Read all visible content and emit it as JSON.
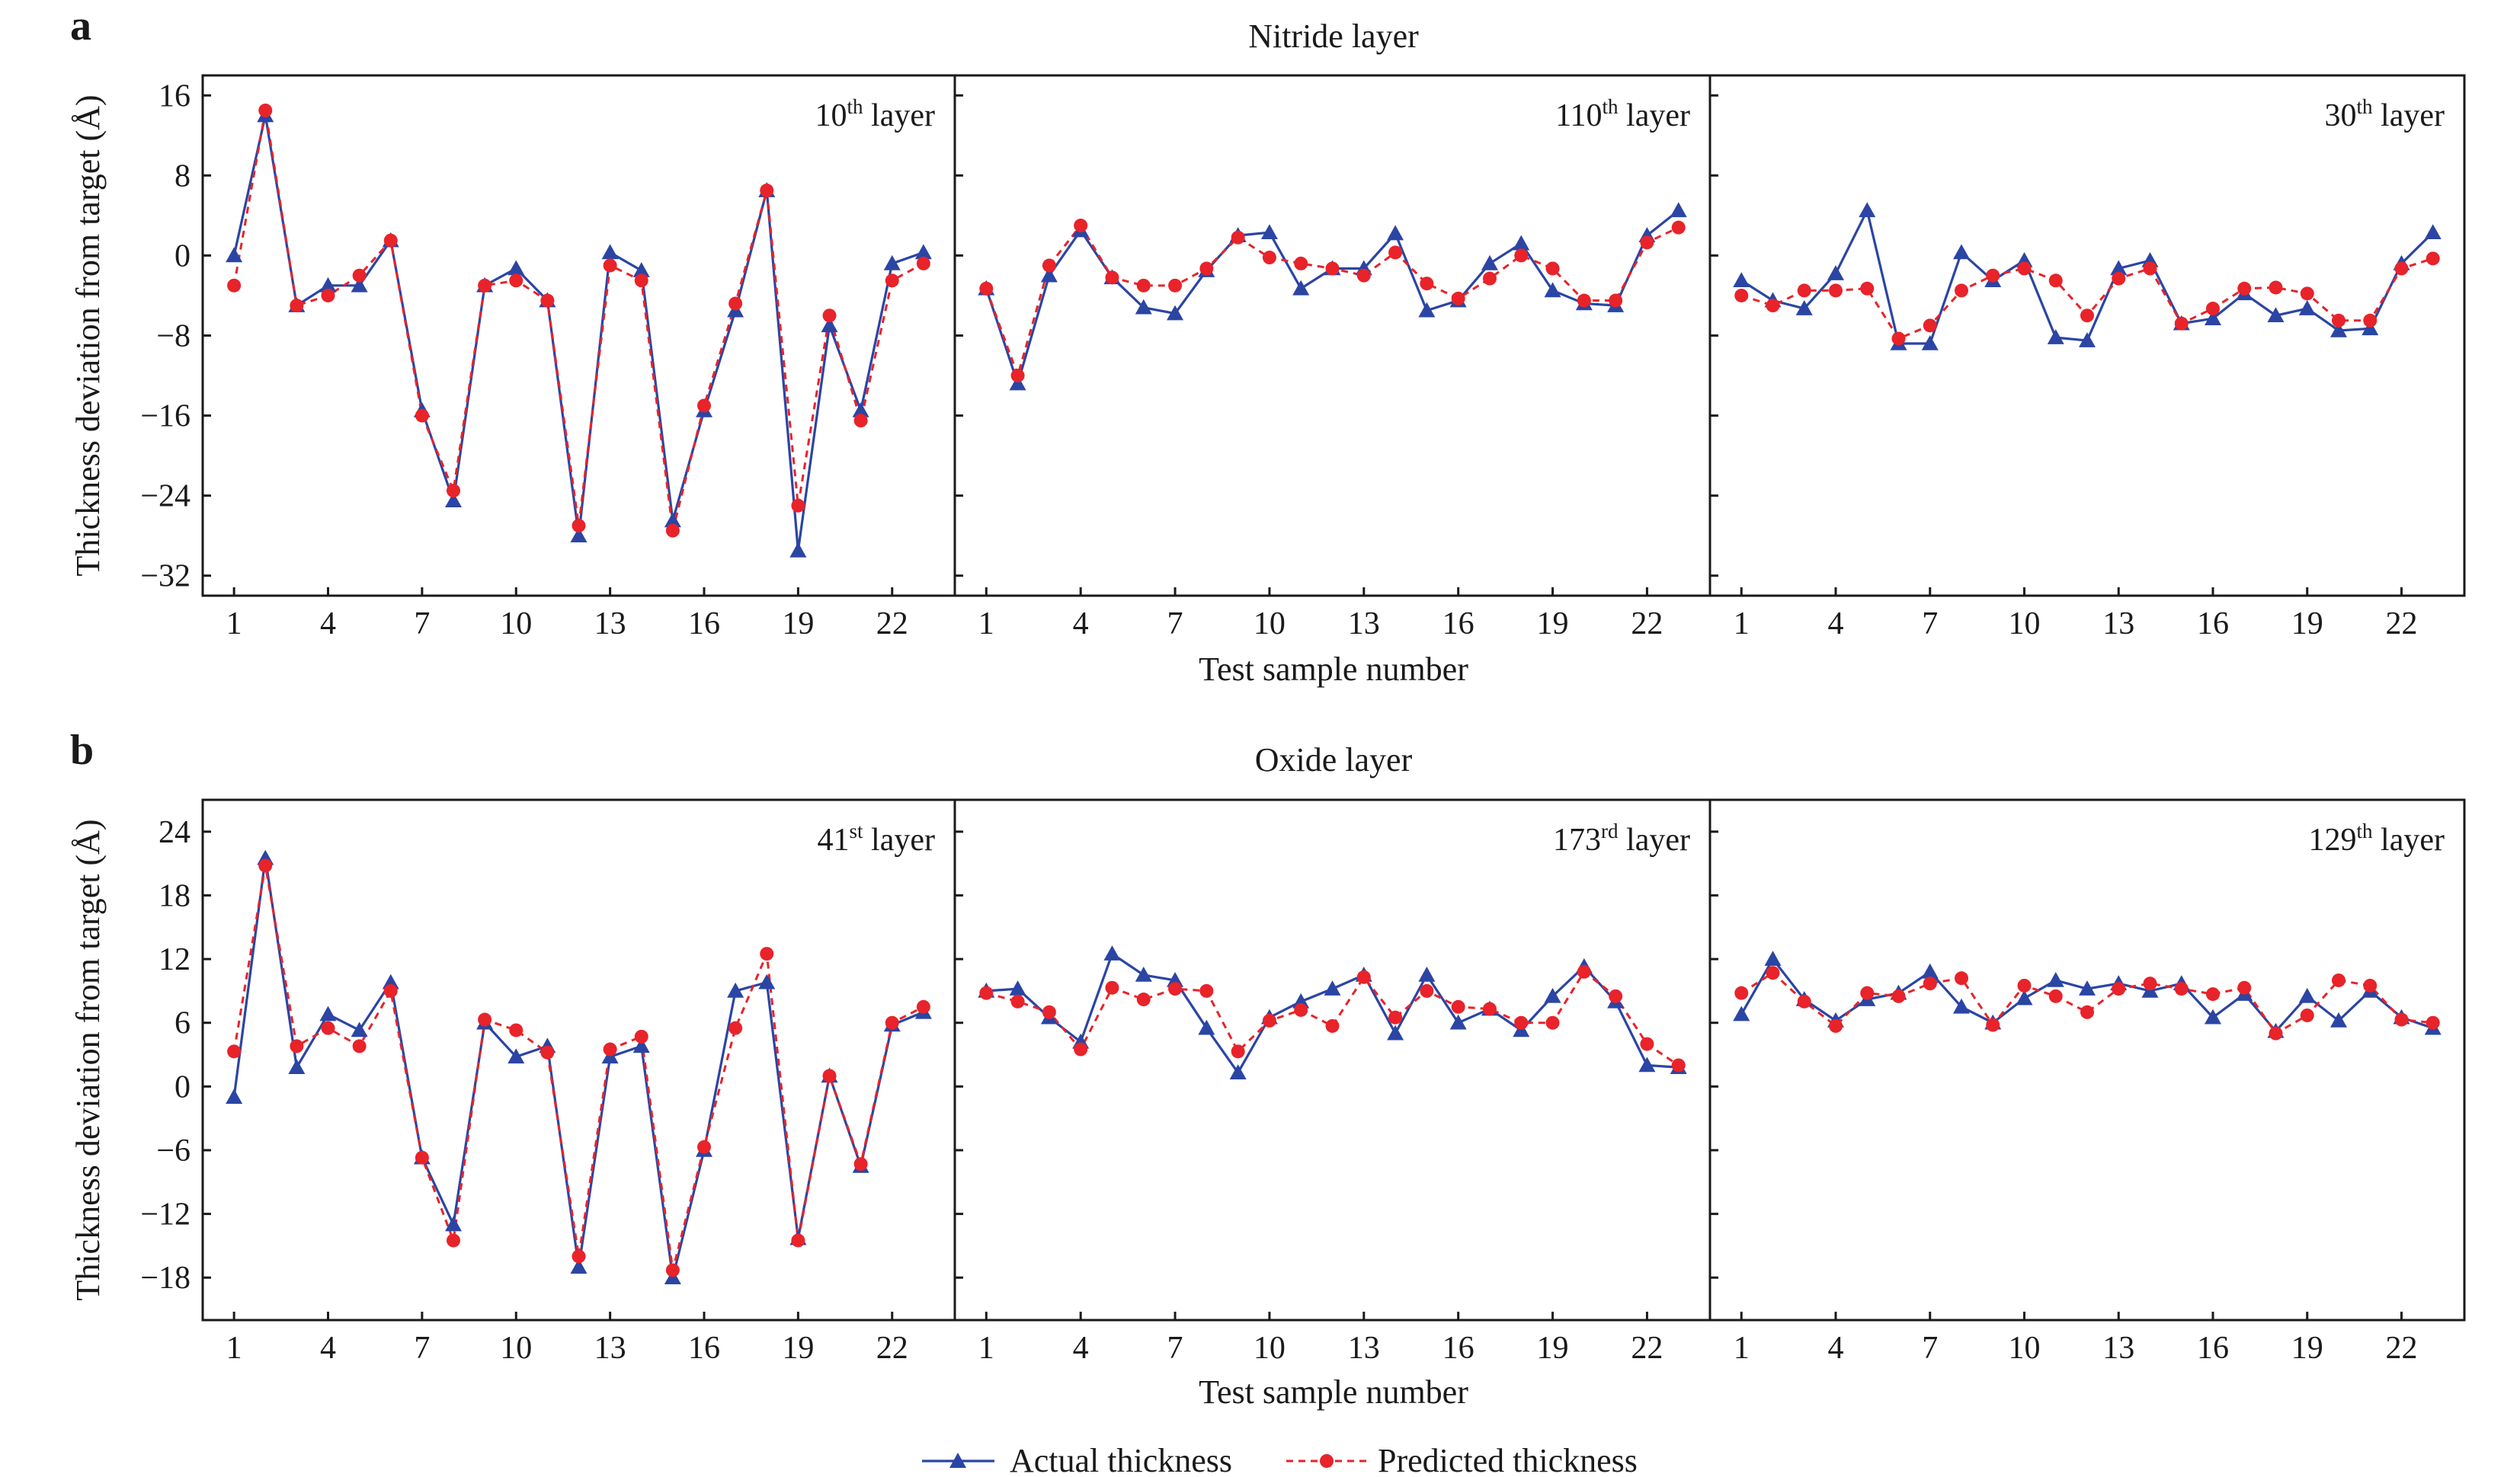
{
  "colors": {
    "actual": "#2b45a4",
    "predicted": "#e8232a",
    "axis": "#1a1a1a"
  },
  "legend": {
    "actual": "Actual thickness",
    "predicted": "Predicted thickness"
  },
  "xlabel": "Test sample number",
  "ylabel": "Thickness deviation from target (Å)",
  "chart_data": [
    {
      "type": "line",
      "panel_label": "a",
      "title": "Nitride layer",
      "xlabel": "Test sample number",
      "ylabel": "Thickness deviation from target (Å)",
      "x": [
        1,
        2,
        3,
        4,
        5,
        6,
        7,
        8,
        9,
        10,
        11,
        12,
        13,
        14,
        15,
        16,
        17,
        18,
        19,
        20,
        21,
        22,
        23
      ],
      "xticks": [
        1,
        4,
        7,
        10,
        13,
        16,
        19,
        22
      ],
      "xlim": [
        0,
        24
      ],
      "ylim": [
        -34,
        18
      ],
      "yticks": [
        16,
        8,
        0,
        -8,
        -16,
        -24,
        -32
      ],
      "ytick_labels": [
        "16",
        "8",
        "0",
        "−8",
        "−16",
        "−24",
        "−32"
      ],
      "legend_position": "bottom-center",
      "grid": false,
      "subplots": [
        {
          "layer_num": "10",
          "layer_sup": "th",
          "layer_suffix": " layer",
          "series": [
            {
              "name": "Actual thickness",
              "values": [
                0,
                14,
                -5,
                -3,
                -3,
                1.5,
                -15.5,
                -24.5,
                -3,
                -1.3,
                -4.5,
                -28,
                0.3,
                -1.5,
                -26.5,
                -15.5,
                -5.5,
                6.5,
                -29.5,
                -7,
                -15.5,
                -0.8,
                0.3
              ]
            },
            {
              "name": "Predicted thickness",
              "values": [
                -3,
                14.5,
                -5,
                -4,
                -2,
                1.5,
                -16,
                -23.5,
                -3,
                -2.5,
                -4.5,
                -27,
                -1,
                -2.5,
                -27.5,
                -15,
                -4.8,
                6.5,
                -25,
                -6,
                -16.5,
                -2.5,
                -0.8
              ]
            }
          ]
        },
        {
          "layer_num": "110",
          "layer_sup": "th",
          "layer_suffix": " layer",
          "series": [
            {
              "name": "Actual thickness",
              "values": [
                -3.3,
                -12.8,
                -2,
                2.5,
                -2.2,
                -5.2,
                -5.8,
                -1.5,
                2,
                2.3,
                -3.3,
                -1.3,
                -1.3,
                2.2,
                -5.5,
                -4.5,
                -0.8,
                1.2,
                -3.5,
                -4.8,
                -5,
                2,
                4.5
              ]
            },
            {
              "name": "Predicted thickness",
              "values": [
                -3.3,
                -12,
                -1,
                3,
                -2.2,
                -3,
                -3,
                -1.3,
                1.8,
                -0.2,
                -0.8,
                -1.3,
                -2,
                0.3,
                -2.8,
                -4.3,
                -2.3,
                0,
                -1.3,
                -4.5,
                -4.5,
                1.3,
                2.8
              ]
            }
          ]
        },
        {
          "layer_num": "30",
          "layer_sup": "th",
          "layer_suffix": " layer",
          "series": [
            {
              "name": "Actual thickness",
              "values": [
                -2.5,
                -4.5,
                -5.3,
                -1.8,
                4.5,
                -8.8,
                -8.8,
                0.3,
                -2.5,
                -0.5,
                -8.2,
                -8.5,
                -1.3,
                -0.5,
                -6.8,
                -6.3,
                -3.8,
                -6,
                -5.3,
                -7.5,
                -7.3,
                -0.8,
                2.3
              ]
            },
            {
              "name": "Predicted thickness",
              "values": [
                -4,
                -5,
                -3.5,
                -3.5,
                -3.3,
                -8.3,
                -7,
                -3.5,
                -2,
                -1.3,
                -2.5,
                -6,
                -2.3,
                -1.3,
                -6.8,
                -5.3,
                -3.3,
                -3.2,
                -3.8,
                -6.5,
                -6.5,
                -1.3,
                -0.3
              ]
            }
          ]
        }
      ]
    },
    {
      "type": "line",
      "panel_label": "b",
      "title": "Oxide layer",
      "xlabel": "Test sample number",
      "ylabel": "Thickness deviation from target (Å)",
      "x": [
        1,
        2,
        3,
        4,
        5,
        6,
        7,
        8,
        9,
        10,
        11,
        12,
        13,
        14,
        15,
        16,
        17,
        18,
        19,
        20,
        21,
        22,
        23
      ],
      "xticks": [
        1,
        4,
        7,
        10,
        13,
        16,
        19,
        22
      ],
      "xlim": [
        0,
        24
      ],
      "ylim": [
        -22,
        27
      ],
      "yticks": [
        24,
        18,
        12,
        6,
        0,
        -6,
        -12,
        -18
      ],
      "ytick_labels": [
        "24",
        "18",
        "12",
        "6",
        "0",
        "−6",
        "−12",
        "−18"
      ],
      "legend_position": "bottom-center",
      "grid": false,
      "subplots": [
        {
          "layer_num": "41",
          "layer_sup": "st",
          "layer_suffix": " layer",
          "series": [
            {
              "name": "Actual thickness",
              "values": [
                -1,
                21.5,
                1.8,
                6.8,
                5.3,
                9.8,
                -6.7,
                -13,
                6,
                2.8,
                3.8,
                -17,
                2.8,
                3.8,
                -18,
                -6,
                9,
                9.8,
                -14.3,
                1,
                -7.5,
                5.8,
                7
              ]
            },
            {
              "name": "Predicted thickness",
              "values": [
                3.3,
                20.8,
                3.8,
                5.5,
                3.8,
                9,
                -6.7,
                -14.5,
                6.3,
                5.3,
                3.2,
                -16,
                3.5,
                4.7,
                -17.3,
                -5.7,
                5.5,
                12.5,
                -14.5,
                1,
                -7.3,
                6,
                7.5
              ]
            }
          ]
        },
        {
          "layer_num": "173",
          "layer_sup": "rd",
          "layer_suffix": " layer",
          "series": [
            {
              "name": "Actual thickness",
              "values": [
                9,
                9.2,
                6.5,
                4.2,
                12.5,
                10.5,
                10,
                5.5,
                1.3,
                6.5,
                8,
                9.2,
                10.5,
                5,
                10.5,
                6,
                7.3,
                5.3,
                8.5,
                11.3,
                8,
                2,
                1.8
              ]
            },
            {
              "name": "Predicted thickness",
              "values": [
                8.8,
                8,
                7,
                3.5,
                9.3,
                8.2,
                9.2,
                9,
                3.3,
                6.2,
                7.2,
                5.7,
                10.3,
                6.5,
                9,
                7.5,
                7.3,
                6,
                6,
                10.8,
                8.5,
                4,
                2
              ]
            }
          ]
        },
        {
          "layer_num": "129",
          "layer_sup": "th",
          "layer_suffix": " layer",
          "series": [
            {
              "name": "Actual thickness",
              "values": [
                6.8,
                12,
                8.2,
                6.2,
                8.2,
                8.8,
                10.8,
                7.5,
                6,
                8.3,
                10,
                9.2,
                9.7,
                9,
                9.7,
                6.5,
                8.7,
                5.2,
                8.5,
                6.2,
                9,
                6.5,
                5.5
              ]
            },
            {
              "name": "Predicted thickness",
              "values": [
                8.8,
                10.7,
                8,
                5.7,
                8.8,
                8.5,
                9.7,
                10.2,
                5.8,
                9.5,
                8.5,
                7,
                9.2,
                9.7,
                9.2,
                8.7,
                9.3,
                5,
                6.7,
                10,
                9.5,
                6.3,
                6
              ]
            }
          ]
        }
      ]
    }
  ]
}
